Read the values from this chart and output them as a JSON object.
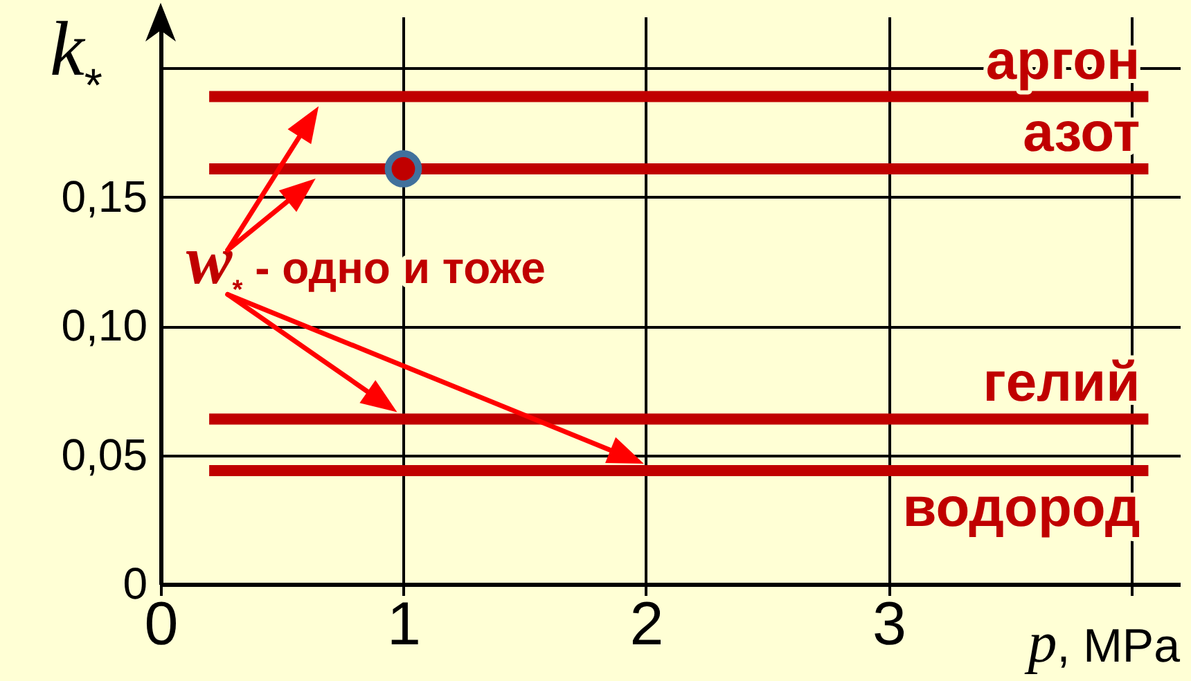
{
  "chart_data": {
    "type": "line",
    "xlabel": "p, MPa",
    "ylabel": "k$_{*}$",
    "annotations": [
      "w$_{*}$ - одно и тоже"
    ],
    "xlim": [
      0,
      4.2
    ],
    "ylim": [
      0,
      0.22
    ],
    "xticks": [
      0,
      1,
      2,
      3,
      {
        "value": 4,
        "label": null
      }
    ],
    "yticks": [
      0,
      {
        "value": 0.05,
        "label": "0,05"
      },
      {
        "value": 0.1,
        "label": "0,10"
      },
      {
        "value": 0.15,
        "label": "0,15"
      },
      {
        "value": 0.2,
        "label": null
      }
    ],
    "grid": true,
    "series": [
      {
        "name": "аргон",
        "color": "#c00000",
        "x": [
          0.2,
          4.07
        ],
        "values": [
          0.189,
          0.189
        ]
      },
      {
        "name": "азот",
        "color": "#c00000",
        "x": [
          0.2,
          4.07
        ],
        "values": [
          0.161,
          0.161
        ]
      },
      {
        "name": "гелий",
        "color": "#c00000",
        "x": [
          0.2,
          4.07
        ],
        "values": [
          0.064,
          0.064
        ]
      },
      {
        "name": "водород",
        "color": "#c00000",
        "x": [
          0.2,
          4.07
        ],
        "values": [
          0.044,
          0.044
        ]
      },
      {
        "type": "scatter",
        "marker": "circle",
        "color": "#c00000",
        "x": [
          1
        ],
        "values": [
          0.161
        ]
      }
    ]
  }
}
